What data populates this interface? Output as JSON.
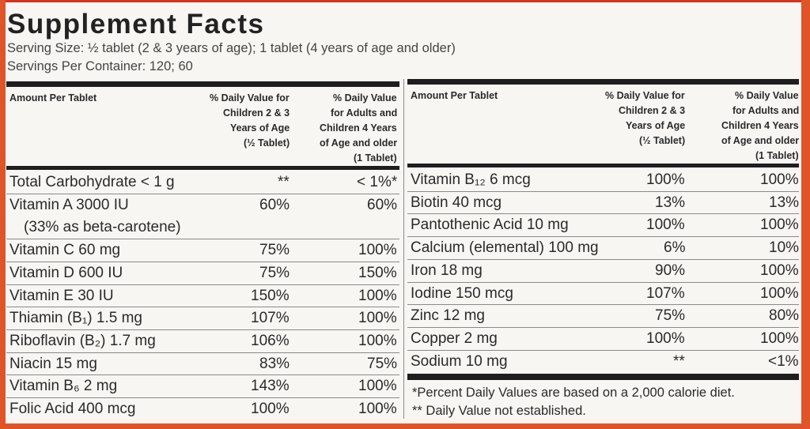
{
  "title": "Supplement Facts",
  "serving_size": "Serving Size: ½ tablet (2 & 3 years of age); 1 tablet (4 years of age and older)",
  "servings_per_container": "Servings Per Container: 120; 60",
  "left_table": {
    "headers": [
      [
        "Amount Per Tablet"
      ],
      [
        "% Daily Value for",
        "Children 2 & 3",
        "Years of Age",
        "(½ Tablet)"
      ],
      [
        "% Daily Value",
        "for Adults and",
        "Children 4 Years",
        "of Age and older",
        "(1 Tablet)"
      ]
    ],
    "rows": [
      {
        "name": "Total Carbohydrate < 1 g",
        "child": "**",
        "adult": "< 1%*"
      },
      {
        "name": "Vitamin A 3000 IU",
        "note": "(33% as beta-carotene)",
        "child": "60%",
        "adult": "60%"
      },
      {
        "name": "Vitamin C 60 mg",
        "child": "75%",
        "adult": "100%"
      },
      {
        "name": "Vitamin D 600 IU",
        "child": "75%",
        "adult": "150%"
      },
      {
        "name": "Vitamin E 30 IU",
        "child": "150%",
        "adult": "100%"
      },
      {
        "name": "Thiamin (B₁) 1.5 mg",
        "child": "107%",
        "adult": "100%"
      },
      {
        "name": "Riboflavin (B₂) 1.7 mg",
        "child": "106%",
        "adult": "100%"
      },
      {
        "name": "Niacin 15 mg",
        "child": "83%",
        "adult": "75%"
      },
      {
        "name": "Vitamin B₆ 2 mg",
        "child": "143%",
        "adult": "100%"
      },
      {
        "name": "Folic Acid 400 mcg",
        "child": "100%",
        "adult": "100%"
      }
    ]
  },
  "right_table": {
    "headers": [
      [
        "Amount Per Tablet"
      ],
      [
        "% Daily Value for",
        "Children 2 & 3",
        "Years of Age",
        "(½ Tablet)"
      ],
      [
        "% Daily Value",
        "for Adults and",
        "Children 4 Years",
        "of Age and older",
        "(1 Tablet)"
      ]
    ],
    "rows": [
      {
        "name": "Vitamin B₁₂ 6 mcg",
        "child": "100%",
        "adult": "100%"
      },
      {
        "name": "Biotin 40 mcg",
        "child": "13%",
        "adult": "13%"
      },
      {
        "name": "Pantothenic Acid 10 mg",
        "child": "100%",
        "adult": "100%"
      },
      {
        "name": "Calcium (elemental) 100 mg",
        "child": "6%",
        "adult": "10%"
      },
      {
        "name": "Iron 18 mg",
        "child": "90%",
        "adult": "100%"
      },
      {
        "name": "Iodine 150 mcg",
        "child": "107%",
        "adult": "100%"
      },
      {
        "name": "Zinc 12 mg",
        "child": "75%",
        "adult": "80%"
      },
      {
        "name": "Copper 2 mg",
        "child": "100%",
        "adult": "100%"
      },
      {
        "name": "Sodium 10 mg",
        "child": "**",
        "adult": "<1%"
      }
    ],
    "footnotes": [
      "*Percent Daily Values are based on a 2,000 calorie diet.",
      "** Daily Value not established."
    ]
  }
}
